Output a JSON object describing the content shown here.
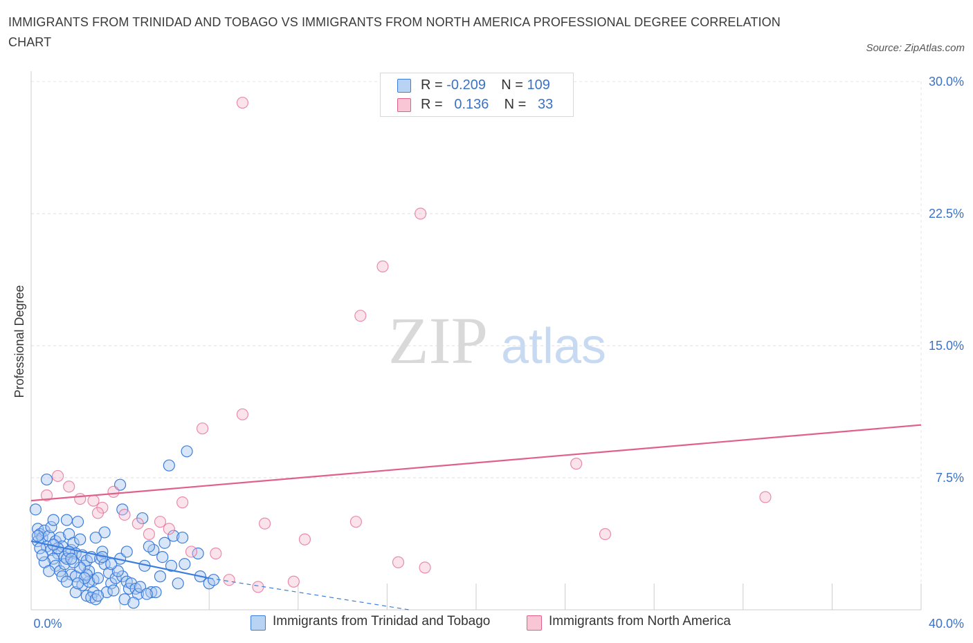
{
  "title": "IMMIGRANTS FROM TRINIDAD AND TOBAGO VS IMMIGRANTS FROM NORTH AMERICA PROFESSIONAL DEGREE CORRELATION CHART",
  "source": "Source: ZipAtlas.com",
  "watermark": {
    "zip": "ZIP",
    "atlas": "atlas"
  },
  "legend": {
    "blue": {
      "r_label": "R =",
      "r_value": "-0.209",
      "n_label": "N =",
      "n_value": "109"
    },
    "pink": {
      "r_label": "R =",
      "r_value": "0.136",
      "n_label": "N =",
      "n_value": "33"
    }
  },
  "colors": {
    "blue": "#3b7ddd",
    "blue_fill": "#aac8f0",
    "pink": "#e0608a",
    "pink_fill": "#f5b8cc",
    "axis_label": "#3a72c8"
  },
  "chart_data": {
    "type": "scatter",
    "title": "IMMIGRANTS FROM TRINIDAD AND TOBAGO VS IMMIGRANTS FROM NORTH AMERICA PROFESSIONAL DEGREE CORRELATION CHART",
    "xlabel": "",
    "ylabel": "Professional Degree",
    "xlim": [
      0,
      40
    ],
    "ylim": [
      0,
      30
    ],
    "x_tick_labels": [
      "0.0%",
      "40.0%"
    ],
    "y_ticks": [
      7.5,
      15.0,
      22.5,
      30.0
    ],
    "y_tick_labels": [
      "7.5%",
      "15.0%",
      "22.5%",
      "30.0%"
    ],
    "grid": true,
    "legend_position": "top-center",
    "series": [
      {
        "name": "Immigrants from Trinidad and Tobago",
        "color": "#3b7ddd",
        "points": [
          [
            0.2,
            5.7
          ],
          [
            0.3,
            4.6
          ],
          [
            0.4,
            4.3
          ],
          [
            0.3,
            3.9
          ],
          [
            0.5,
            4.1
          ],
          [
            0.6,
            4.5
          ],
          [
            0.7,
            3.6
          ],
          [
            0.8,
            4.2
          ],
          [
            0.9,
            3.4
          ],
          [
            0.4,
            3.5
          ],
          [
            0.7,
            7.4
          ],
          [
            0.9,
            4.7
          ],
          [
            1.0,
            5.1
          ],
          [
            1.1,
            3.9
          ],
          [
            1.3,
            4.1
          ],
          [
            1.2,
            3.2
          ],
          [
            1.4,
            3.6
          ],
          [
            1.5,
            3.0
          ],
          [
            1.6,
            5.1
          ],
          [
            1.7,
            4.3
          ],
          [
            1.8,
            3.4
          ],
          [
            1.9,
            3.8
          ],
          [
            2.0,
            3.2
          ],
          [
            1.0,
            2.9
          ],
          [
            1.1,
            2.5
          ],
          [
            1.3,
            2.2
          ],
          [
            1.5,
            2.6
          ],
          [
            1.6,
            2.9
          ],
          [
            1.8,
            2.0
          ],
          [
            2.0,
            1.9
          ],
          [
            2.1,
            5.0
          ],
          [
            2.2,
            4.0
          ],
          [
            2.3,
            3.1
          ],
          [
            2.4,
            2.5
          ],
          [
            2.5,
            2.8
          ],
          [
            2.6,
            2.2
          ],
          [
            2.7,
            3.0
          ],
          [
            2.8,
            1.7
          ],
          [
            2.0,
            1.0
          ],
          [
            2.3,
            1.4
          ],
          [
            2.5,
            0.8
          ],
          [
            2.6,
            1.6
          ],
          [
            2.8,
            1.0
          ],
          [
            3.0,
            1.8
          ],
          [
            2.7,
            0.7
          ],
          [
            2.9,
            0.6
          ],
          [
            2.5,
            2.0
          ],
          [
            2.2,
            2.4
          ],
          [
            1.9,
            2.7
          ],
          [
            1.7,
            3.3
          ],
          [
            3.1,
            2.9
          ],
          [
            3.2,
            3.3
          ],
          [
            3.3,
            2.6
          ],
          [
            3.5,
            2.1
          ],
          [
            3.6,
            1.5
          ],
          [
            3.4,
            1.0
          ],
          [
            3.7,
            1.1
          ],
          [
            3.8,
            1.8
          ],
          [
            3.3,
            4.4
          ],
          [
            3.2,
            3.0
          ],
          [
            4.0,
            2.9
          ],
          [
            4.1,
            1.9
          ],
          [
            4.3,
            1.6
          ],
          [
            4.4,
            1.2
          ],
          [
            4.2,
            0.6
          ],
          [
            4.5,
            1.5
          ],
          [
            4.7,
            1.2
          ],
          [
            4.8,
            0.9
          ],
          [
            4.6,
            0.4
          ],
          [
            4.9,
            1.3
          ],
          [
            3.9,
            2.2
          ],
          [
            4.0,
            7.1
          ],
          [
            4.1,
            5.7
          ],
          [
            5.0,
            5.2
          ],
          [
            5.1,
            2.5
          ],
          [
            5.4,
            1.0
          ],
          [
            5.6,
            1.0
          ],
          [
            5.2,
            0.9
          ],
          [
            5.9,
            3.0
          ],
          [
            6.0,
            3.8
          ],
          [
            6.2,
            8.2
          ],
          [
            6.3,
            2.5
          ],
          [
            6.4,
            4.2
          ],
          [
            7.0,
            9.0
          ],
          [
            6.8,
            4.1
          ],
          [
            5.5,
            3.4
          ],
          [
            5.3,
            3.6
          ],
          [
            6.9,
            2.6
          ],
          [
            7.5,
            3.2
          ],
          [
            8.0,
            1.5
          ],
          [
            8.2,
            1.7
          ],
          [
            7.6,
            1.9
          ],
          [
            1.2,
            3.5
          ],
          [
            1.4,
            1.9
          ],
          [
            0.6,
            2.7
          ],
          [
            0.5,
            3.1
          ],
          [
            0.8,
            2.2
          ],
          [
            1.6,
            1.6
          ],
          [
            2.4,
            1.8
          ],
          [
            3.0,
            0.8
          ],
          [
            4.3,
            3.3
          ],
          [
            5.8,
            1.9
          ],
          [
            6.6,
            1.5
          ],
          [
            2.9,
            4.1
          ],
          [
            0.3,
            4.2
          ],
          [
            1.0,
            3.7
          ],
          [
            1.8,
            2.9
          ],
          [
            2.1,
            1.5
          ],
          [
            3.6,
            2.6
          ]
        ],
        "trend_solid": [
          [
            0.0,
            3.9
          ],
          [
            8.0,
            1.8
          ]
        ],
        "trend_dashed": [
          [
            8.0,
            1.8
          ],
          [
            17.0,
            0.0
          ]
        ]
      },
      {
        "name": "Immigrants from North America",
        "color": "#e0608a",
        "points": [
          [
            9.5,
            28.8
          ],
          [
            17.5,
            22.5
          ],
          [
            15.8,
            19.5
          ],
          [
            14.8,
            16.7
          ],
          [
            9.5,
            11.1
          ],
          [
            7.7,
            10.3
          ],
          [
            24.5,
            8.3
          ],
          [
            33.0,
            6.4
          ],
          [
            1.2,
            7.6
          ],
          [
            0.7,
            6.5
          ],
          [
            1.7,
            7.0
          ],
          [
            2.2,
            6.3
          ],
          [
            2.8,
            6.2
          ],
          [
            3.2,
            5.8
          ],
          [
            3.7,
            6.7
          ],
          [
            4.2,
            5.4
          ],
          [
            4.8,
            4.9
          ],
          [
            5.3,
            4.3
          ],
          [
            5.8,
            5.0
          ],
          [
            6.2,
            4.6
          ],
          [
            6.8,
            6.1
          ],
          [
            7.2,
            3.3
          ],
          [
            8.3,
            3.2
          ],
          [
            10.5,
            4.9
          ],
          [
            12.3,
            4.0
          ],
          [
            14.6,
            5.0
          ],
          [
            16.5,
            2.7
          ],
          [
            17.7,
            2.4
          ],
          [
            8.9,
            1.7
          ],
          [
            10.2,
            1.3
          ],
          [
            11.8,
            1.6
          ],
          [
            25.8,
            4.3
          ],
          [
            3.0,
            5.5
          ]
        ],
        "trend": [
          [
            0.0,
            6.2
          ],
          [
            40.0,
            10.5
          ]
        ]
      }
    ]
  }
}
